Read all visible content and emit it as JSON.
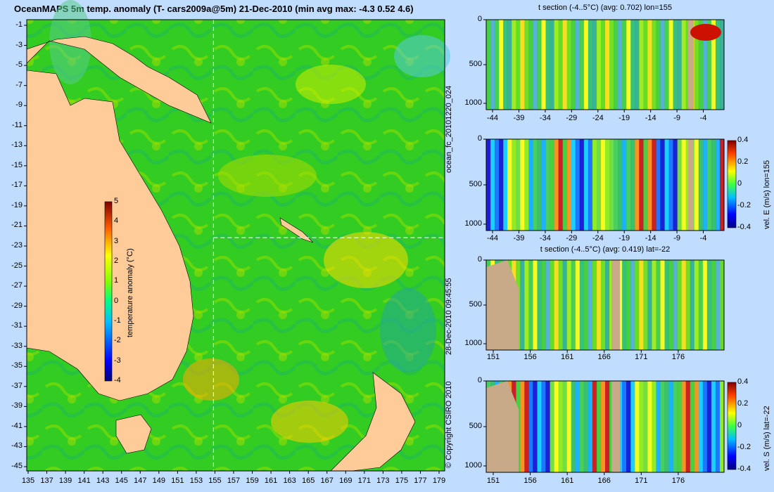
{
  "header": {
    "title": "OceanMAPS 5m temp. anomaly (T- cars2009a@5m) 21-Dec-2010 (min avg max: -4.3 0.52 4.6)"
  },
  "map": {
    "lat_ticks": [
      "-1",
      "-3",
      "-5",
      "-7",
      "-9",
      "-11",
      "-13",
      "-15",
      "-17",
      "-19",
      "-21",
      "-23",
      "-25",
      "-27",
      "-29",
      "-31",
      "-33",
      "-35",
      "-37",
      "-39",
      "-41",
      "-43",
      "-45"
    ],
    "lon_ticks": [
      "135",
      "137",
      "139",
      "141",
      "143",
      "145",
      "147",
      "149",
      "151",
      "153",
      "155",
      "157",
      "159",
      "161",
      "163",
      "165",
      "167",
      "169",
      "171",
      "173",
      "175",
      "177",
      "179"
    ],
    "section_lon": 155,
    "section_lat": -22,
    "colorbar": {
      "label": "temperature anomaly (°C)",
      "ticks": [
        "5",
        "4",
        "3",
        "2",
        "1",
        "0",
        "-1",
        "-2",
        "-3",
        "-4"
      ],
      "range": [
        -4,
        5
      ]
    }
  },
  "side_labels": {
    "forecast_id": "ocean_fc_20101220_024",
    "timestamp": "28-Dec-2010 09:45:55",
    "copyright": "© Copyright CSIRO 2010"
  },
  "sections": [
    {
      "title": "t section (-4..5°C) (avg: 0.702) lon=155",
      "depth_ticks": [
        "0",
        "500",
        "1000"
      ],
      "x_ticks": [
        "-44",
        "-39",
        "-34",
        "-29",
        "-24",
        "-19",
        "-14",
        "-9",
        "-4"
      ],
      "colorbar": null
    },
    {
      "title": "",
      "depth_ticks": [
        "0",
        "500",
        "1000"
      ],
      "x_ticks": [
        "-44",
        "-39",
        "-34",
        "-29",
        "-24",
        "-19",
        "-14",
        "-9",
        "-4"
      ],
      "colorbar": {
        "label": "vel. E (m/s) lon=155",
        "ticks": [
          "0.4",
          "0.2",
          "0",
          "-0.2",
          "-0.4"
        ]
      }
    },
    {
      "title": "t section (-4..5°C) (avg: 0.419) lat=-22",
      "depth_ticks": [
        "0",
        "500",
        "1000"
      ],
      "x_ticks": [
        "151",
        "156",
        "161",
        "166",
        "171",
        "176"
      ],
      "colorbar": null
    },
    {
      "title": "",
      "depth_ticks": [
        "0",
        "500",
        "1000"
      ],
      "x_ticks": [
        "151",
        "156",
        "161",
        "166",
        "171",
        "176"
      ],
      "colorbar": {
        "label": "vel. S (m/s) lat=-22",
        "ticks": [
          "0.4",
          "0.2",
          "0",
          "-0.2",
          "-0.4"
        ]
      }
    }
  ],
  "colors": {
    "background": "#c0dcff",
    "land": "#ffcc99",
    "section_land": "#c8aa88",
    "ocean_base": "#33cc22"
  }
}
